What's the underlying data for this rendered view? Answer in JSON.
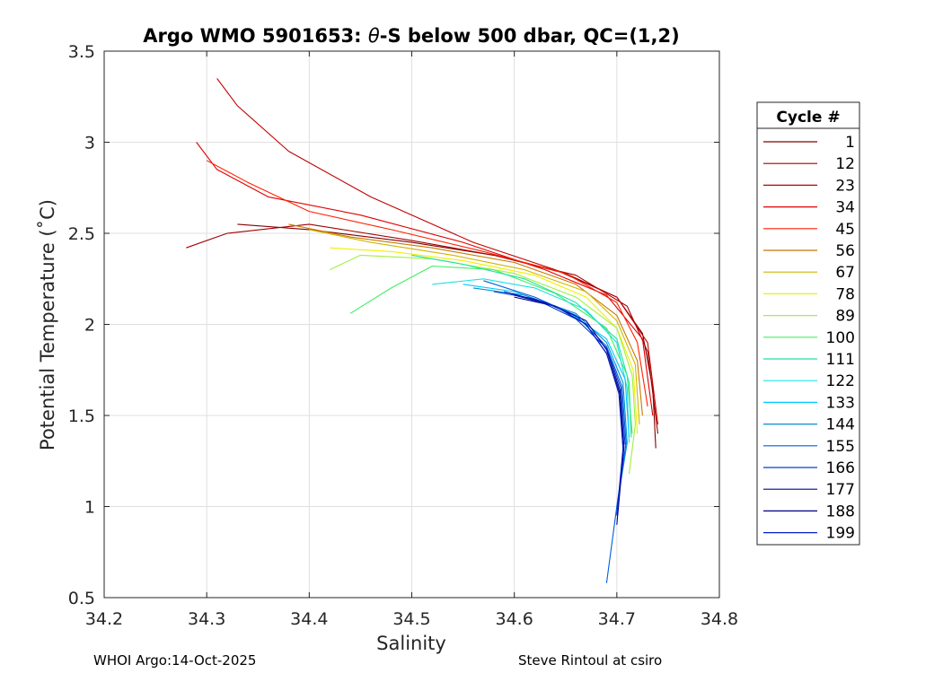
{
  "title": {
    "prefix": "Argo WMO 5901653: ",
    "theta": "θ",
    "suffix": "-S below 500 dbar,  QC=(1,2)"
  },
  "footer": {
    "left": "WHOI Argo:14-Oct-2025",
    "right": "Steve Rintoul at csiro"
  },
  "legend": {
    "title": "Cycle #",
    "entries": [
      {
        "label": "1",
        "color": "#800000"
      },
      {
        "label": "12",
        "color": "#a00000"
      },
      {
        "label": "23",
        "color": "#c00000"
      },
      {
        "label": "34",
        "color": "#e00000"
      },
      {
        "label": "45",
        "color": "#ff2000"
      },
      {
        "label": "56",
        "color": "#c87800"
      },
      {
        "label": "67",
        "color": "#d2b400"
      },
      {
        "label": "78",
        "color": "#f0f000"
      },
      {
        "label": "89",
        "color": "#a0f040"
      },
      {
        "label": "100",
        "color": "#40f060"
      },
      {
        "label": "111",
        "color": "#20e0a0"
      },
      {
        "label": "122",
        "color": "#20e0e0"
      },
      {
        "label": "133",
        "color": "#00c8ff"
      },
      {
        "label": "144",
        "color": "#0090d0"
      },
      {
        "label": "155",
        "color": "#0060e0"
      },
      {
        "label": "166",
        "color": "#0040d0"
      },
      {
        "label": "177",
        "color": "#0000a0"
      },
      {
        "label": "188",
        "color": "#000080"
      },
      {
        "label": "199",
        "color": "#0020c0"
      }
    ]
  },
  "chart_data": {
    "type": "line",
    "xlabel": "Salinity",
    "ylabel": "Potential Temperature (˚C)",
    "xlim": [
      34.2,
      34.8
    ],
    "ylim": [
      0.5,
      3.5
    ],
    "xticks": [
      "34.2",
      "34.3",
      "34.4",
      "34.5",
      "34.6",
      "34.7",
      "34.8"
    ],
    "yticks": [
      "0.5",
      "1",
      "1.5",
      "2",
      "2.5",
      "3",
      "3.5"
    ],
    "grid": true,
    "legend_position": "right",
    "series": [
      {
        "name": "1",
        "color": "#800000",
        "x": [
          34.33,
          34.4,
          34.5,
          34.58,
          34.65,
          34.7,
          34.725,
          34.735,
          34.738
        ],
        "y": [
          2.55,
          2.52,
          2.45,
          2.38,
          2.28,
          2.15,
          1.95,
          1.65,
          1.32
        ]
      },
      {
        "name": "12",
        "color": "#a00000",
        "x": [
          34.28,
          34.32,
          34.4,
          34.5,
          34.58,
          34.66,
          34.71,
          34.73,
          34.74
        ],
        "y": [
          2.42,
          2.5,
          2.55,
          2.46,
          2.38,
          2.27,
          2.1,
          1.85,
          1.4
        ]
      },
      {
        "name": "23",
        "color": "#c00000",
        "x": [
          34.31,
          34.33,
          34.38,
          34.46,
          34.56,
          34.64,
          34.7,
          34.73,
          34.74
        ],
        "y": [
          3.35,
          3.2,
          2.95,
          2.7,
          2.45,
          2.3,
          2.15,
          1.9,
          1.45
        ]
      },
      {
        "name": "34",
        "color": "#e00000",
        "x": [
          34.29,
          34.31,
          34.36,
          34.45,
          34.55,
          34.63,
          34.69,
          34.725,
          34.735
        ],
        "y": [
          3.0,
          2.85,
          2.7,
          2.6,
          2.45,
          2.3,
          2.16,
          1.92,
          1.5
        ]
      },
      {
        "name": "45",
        "color": "#ff2000",
        "x": [
          34.3,
          34.34,
          34.4,
          34.48,
          34.57,
          34.65,
          34.7,
          34.72,
          34.73
        ],
        "y": [
          2.9,
          2.78,
          2.62,
          2.52,
          2.4,
          2.28,
          2.12,
          1.9,
          1.55
        ]
      },
      {
        "name": "56",
        "color": "#c87800",
        "x": [
          34.38,
          34.44,
          34.52,
          34.6,
          34.66,
          34.7,
          34.72,
          34.725
        ],
        "y": [
          2.55,
          2.48,
          2.42,
          2.34,
          2.22,
          2.05,
          1.8,
          1.5
        ]
      },
      {
        "name": "67",
        "color": "#d2b400",
        "x": [
          34.4,
          34.46,
          34.54,
          34.61,
          34.67,
          34.7,
          34.718,
          34.722
        ],
        "y": [
          2.52,
          2.45,
          2.38,
          2.3,
          2.18,
          2.02,
          1.78,
          1.45
        ]
      },
      {
        "name": "78",
        "color": "#f0f000",
        "x": [
          34.42,
          34.48,
          34.55,
          34.62,
          34.67,
          34.7,
          34.716,
          34.72
        ],
        "y": [
          2.42,
          2.4,
          2.35,
          2.27,
          2.15,
          1.98,
          1.75,
          1.4
        ]
      },
      {
        "name": "89",
        "color": "#a0f040",
        "x": [
          34.42,
          34.45,
          34.52,
          34.6,
          34.66,
          34.7,
          34.715,
          34.718,
          34.712
        ],
        "y": [
          2.3,
          2.38,
          2.36,
          2.28,
          2.15,
          1.98,
          1.72,
          1.45,
          1.18
        ]
      },
      {
        "name": "100",
        "color": "#40f060",
        "x": [
          34.44,
          34.48,
          34.52,
          34.58,
          34.64,
          34.69,
          34.71,
          34.715
        ],
        "y": [
          2.06,
          2.2,
          2.32,
          2.3,
          2.17,
          1.98,
          1.72,
          1.4
        ]
      },
      {
        "name": "111",
        "color": "#20e0a0",
        "x": [
          34.5,
          34.55,
          34.61,
          34.66,
          34.7,
          34.712,
          34.714
        ],
        "y": [
          2.38,
          2.33,
          2.25,
          2.12,
          1.92,
          1.68,
          1.38
        ]
      },
      {
        "name": "122",
        "color": "#20e0e0",
        "x": [
          34.52,
          34.57,
          34.62,
          34.67,
          34.7,
          34.71,
          34.712
        ],
        "y": [
          2.22,
          2.25,
          2.2,
          2.08,
          1.9,
          1.65,
          1.35
        ]
      },
      {
        "name": "133",
        "color": "#00c8ff",
        "x": [
          34.55,
          34.6,
          34.65,
          34.69,
          34.708,
          34.712
        ],
        "y": [
          2.22,
          2.18,
          2.08,
          1.92,
          1.7,
          1.38
        ]
      },
      {
        "name": "144",
        "color": "#0090d0",
        "x": [
          34.56,
          34.61,
          34.66,
          34.69,
          34.706,
          34.71,
          34.7
        ],
        "y": [
          2.2,
          2.16,
          2.06,
          1.9,
          1.68,
          1.35,
          1.0
        ]
      },
      {
        "name": "155",
        "color": "#0060e0",
        "x": [
          34.57,
          34.62,
          34.66,
          34.69,
          34.705,
          34.709,
          34.7,
          34.69
        ],
        "y": [
          2.24,
          2.15,
          2.05,
          1.88,
          1.66,
          1.35,
          1.0,
          0.58
        ]
      },
      {
        "name": "166",
        "color": "#0040d0",
        "x": [
          34.58,
          34.62,
          34.66,
          34.69,
          34.704,
          34.708
        ],
        "y": [
          2.18,
          2.14,
          2.03,
          1.87,
          1.65,
          1.34
        ]
      },
      {
        "name": "177",
        "color": "#0000a0",
        "x": [
          34.59,
          34.63,
          34.67,
          34.69,
          34.703,
          34.707,
          34.7
        ],
        "y": [
          2.18,
          2.12,
          2.02,
          1.86,
          1.64,
          1.33,
          0.9
        ]
      },
      {
        "name": "188",
        "color": "#000080",
        "x": [
          34.6,
          34.64,
          34.67,
          34.69,
          34.703,
          34.706
        ],
        "y": [
          2.15,
          2.1,
          2.0,
          1.84,
          1.62,
          1.32
        ]
      },
      {
        "name": "199",
        "color": "#0020c0",
        "x": [
          34.6,
          34.64,
          34.67,
          34.69,
          34.702,
          34.706,
          34.7
        ],
        "y": [
          2.16,
          2.1,
          2.0,
          1.84,
          1.62,
          1.32,
          0.95
        ]
      }
    ]
  }
}
